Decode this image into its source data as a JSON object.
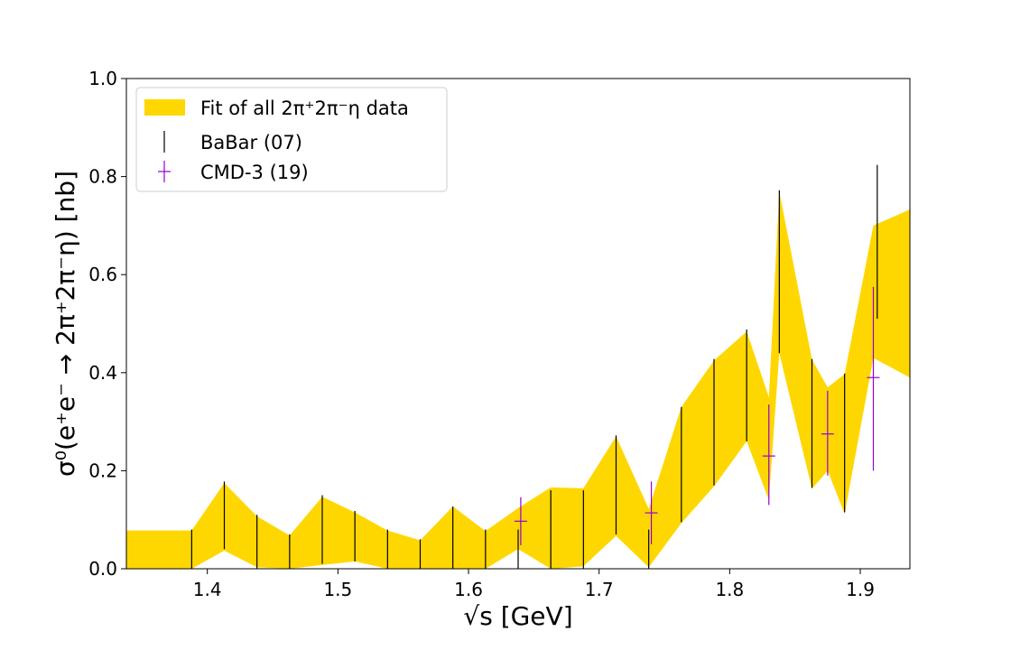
{
  "chart_data": {
    "type": "line",
    "xlabel": "√s [GeV]",
    "ylabel": "σ⁰(e⁺e⁻ → 2π⁺2π⁻η) [nb]",
    "xlim": [
      1.338,
      1.938
    ],
    "ylim": [
      0.0,
      1.0
    ],
    "xticks": [
      1.4,
      1.5,
      1.6,
      1.7,
      1.8,
      1.9
    ],
    "yticks": [
      0.0,
      0.2,
      0.4,
      0.6,
      0.8,
      1.0
    ],
    "xtick_labels": [
      "1.4",
      "1.5",
      "1.6",
      "1.7",
      "1.8",
      "1.9"
    ],
    "ytick_labels": [
      "0.0",
      "0.2",
      "0.4",
      "0.6",
      "0.8",
      "1.0"
    ],
    "legend_position": "upper-left",
    "grid": false,
    "series": [
      {
        "name": "Fit of all 2π⁺2π⁻η data",
        "kind": "band",
        "color": "#FFD700",
        "x": [
          1.338,
          1.388,
          1.413,
          1.438,
          1.463,
          1.488,
          1.513,
          1.538,
          1.563,
          1.588,
          1.613,
          1.638,
          1.663,
          1.688,
          1.713,
          1.738,
          1.763,
          1.788,
          1.813,
          1.83,
          1.838,
          1.863,
          1.875,
          1.888,
          1.91,
          1.938
        ],
        "lower": [
          0.0,
          0.0,
          0.037,
          0.003,
          0.0,
          0.008,
          0.015,
          0.0,
          0.0,
          0.0,
          0.0,
          0.04,
          0.0,
          0.005,
          0.067,
          0.003,
          0.093,
          0.168,
          0.26,
          0.14,
          0.44,
          0.163,
          0.2,
          0.112,
          0.43,
          0.39
        ],
        "upper": [
          0.078,
          0.078,
          0.175,
          0.107,
          0.068,
          0.147,
          0.115,
          0.078,
          0.058,
          0.127,
          0.077,
          0.124,
          0.166,
          0.164,
          0.27,
          0.122,
          0.33,
          0.425,
          0.484,
          0.35,
          0.77,
          0.427,
          0.37,
          0.397,
          0.7,
          0.733
        ]
      },
      {
        "name": "BaBar (07)",
        "kind": "errorbar",
        "color": "#000000",
        "x": [
          1.388,
          1.413,
          1.438,
          1.463,
          1.488,
          1.513,
          1.538,
          1.563,
          1.588,
          1.613,
          1.638,
          1.663,
          1.688,
          1.713,
          1.738,
          1.763,
          1.788,
          1.813,
          1.838,
          1.863,
          1.888,
          1.913
        ],
        "low": [
          0.0,
          0.04,
          0.0,
          0.0,
          0.01,
          0.015,
          0.0,
          0.0,
          0.0,
          0.0,
          0.0,
          0.0,
          0.0,
          0.07,
          0.0,
          0.095,
          0.17,
          0.26,
          0.44,
          0.165,
          0.115,
          0.51
        ],
        "high": [
          0.08,
          0.178,
          0.11,
          0.07,
          0.15,
          0.118,
          0.08,
          0.06,
          0.127,
          0.08,
          0.08,
          0.16,
          0.16,
          0.272,
          0.08,
          0.33,
          0.428,
          0.488,
          0.772,
          0.428,
          0.398,
          0.824
        ]
      },
      {
        "name": "CMD-3 (19)",
        "kind": "errorbar",
        "color": "#9400D3",
        "x": [
          1.64,
          1.74,
          1.83,
          1.875,
          1.91
        ],
        "y": [
          0.097,
          0.114,
          0.23,
          0.275,
          0.39
        ],
        "yerr_low": [
          0.049,
          0.064,
          0.1,
          0.085,
          0.19
        ],
        "yerr_high": [
          0.049,
          0.064,
          0.105,
          0.088,
          0.185
        ]
      }
    ],
    "legend": [
      {
        "label": "Fit of all 2π⁺2π⁻η data",
        "marker": "band"
      },
      {
        "label": "BaBar (07)",
        "marker": "vline"
      },
      {
        "label": "CMD-3 (19)",
        "marker": "cross"
      }
    ]
  }
}
